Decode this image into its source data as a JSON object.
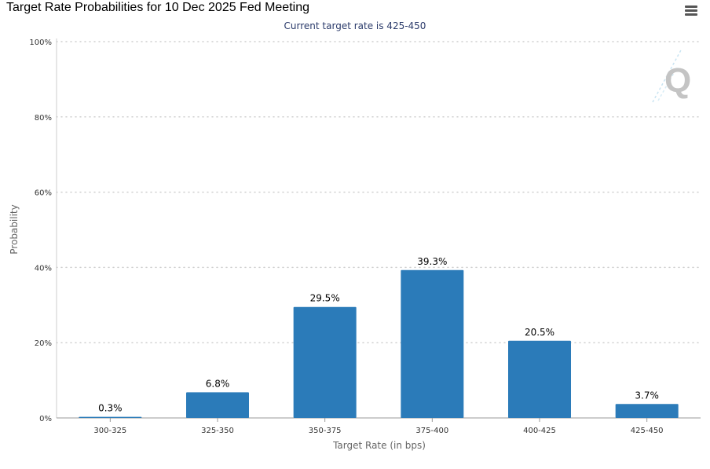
{
  "header": {
    "title": "Target Rate Probabilities for 10 Dec 2025 Fed Meeting",
    "subtitle": "Current target rate is 425-450",
    "menu_icon": "hamburger-menu-icon",
    "watermark_icon": "q-logo-icon"
  },
  "chart_data": {
    "type": "bar",
    "title": "Target Rate Probabilities for 10 Dec 2025 Fed Meeting",
    "subtitle": "Current target rate is 425-450",
    "xlabel": "Target Rate (in bps)",
    "ylabel": "Probability",
    "categories": [
      "300-325",
      "325-350",
      "350-375",
      "375-400",
      "400-425",
      "425-450"
    ],
    "values": [
      0.3,
      6.8,
      29.5,
      39.3,
      20.5,
      3.7
    ],
    "data_labels": [
      "0.3%",
      "6.8%",
      "29.5%",
      "39.3%",
      "20.5%",
      "3.7%"
    ],
    "ylim": [
      0,
      100
    ],
    "yticks": [
      0,
      20,
      40,
      60,
      80,
      100
    ],
    "ytick_labels": [
      "0%",
      "20%",
      "40%",
      "60%",
      "80%",
      "100%"
    ],
    "grid": true,
    "bar_color": "#2b7bb9"
  }
}
